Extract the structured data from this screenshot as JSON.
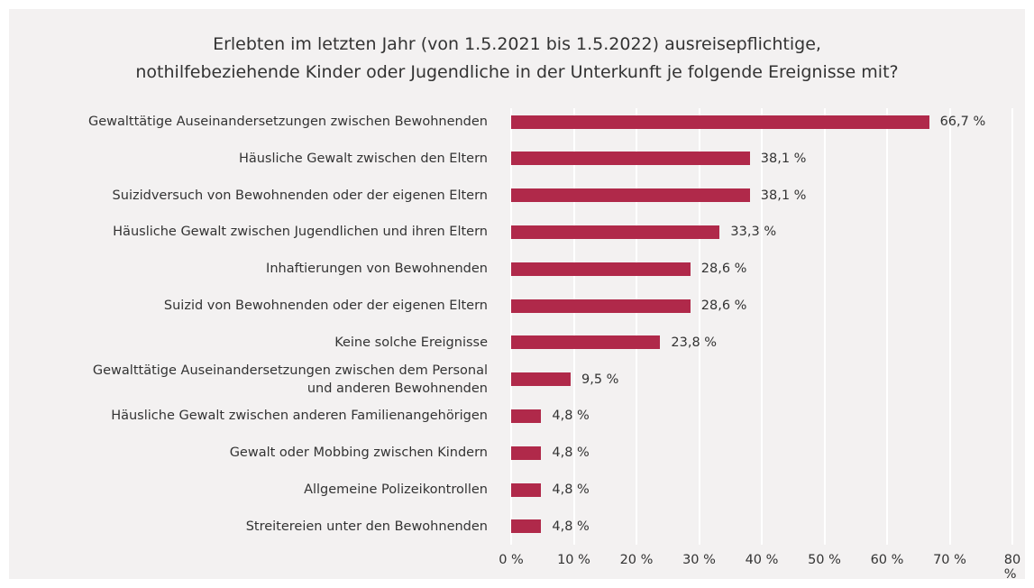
{
  "chart_data": {
    "type": "bar",
    "orientation": "horizontal",
    "title": "Erlebten im letzten Jahr (von 1.5.2021 bis 1.5.2022) ausreisepflichtige,\nnothilfebeziehende Kinder oder Jugendliche in der Unterkunft je folgende Ereignisse mit?",
    "categories": [
      "Gewalttätige Auseinandersetzungen zwischen Bewohnenden",
      "Häusliche Gewalt zwischen den Eltern",
      "Suizidversuch von Bewohnenden oder der eigenen Eltern",
      "Häusliche Gewalt zwischen Jugendlichen und ihren Eltern",
      "Inhaftierungen von Bewohnenden",
      "Suizid von Bewohnenden oder der eigenen Eltern",
      "Keine solche Ereignisse",
      "Gewalttätige Auseinandersetzungen zwischen dem Personal\nund anderen Bewohnenden",
      "Häusliche Gewalt zwischen anderen Familienangehörigen",
      "Gewalt oder Mobbing zwischen Kindern",
      "Allgemeine Polizeikontrollen",
      "Streitereien unter den Bewohnenden"
    ],
    "values": [
      66.7,
      38.1,
      38.1,
      33.3,
      28.6,
      28.6,
      23.8,
      9.5,
      4.8,
      4.8,
      4.8,
      4.8
    ],
    "value_labels": [
      "66,7 %",
      "38,1 %",
      "38,1 %",
      "33,3 %",
      "28,6 %",
      "28,6 %",
      "23,8 %",
      "9,5 %",
      "4,8 %",
      "4,8 %",
      "4,8 %",
      "4,8 %"
    ],
    "color": "#b0294a",
    "xlim": [
      0,
      80
    ],
    "xticks": [
      {
        "value": 0,
        "label": "0 %"
      },
      {
        "value": 10,
        "label": "10 %"
      },
      {
        "value": 20,
        "label": "20 %"
      },
      {
        "value": 30,
        "label": "30 %"
      },
      {
        "value": 40,
        "label": "40 %"
      },
      {
        "value": 50,
        "label": "50 %"
      },
      {
        "value": 60,
        "label": "60 %"
      },
      {
        "value": 70,
        "label": "70 %"
      },
      {
        "value": 80,
        "label": "80 %"
      }
    ],
    "grid": true
  }
}
